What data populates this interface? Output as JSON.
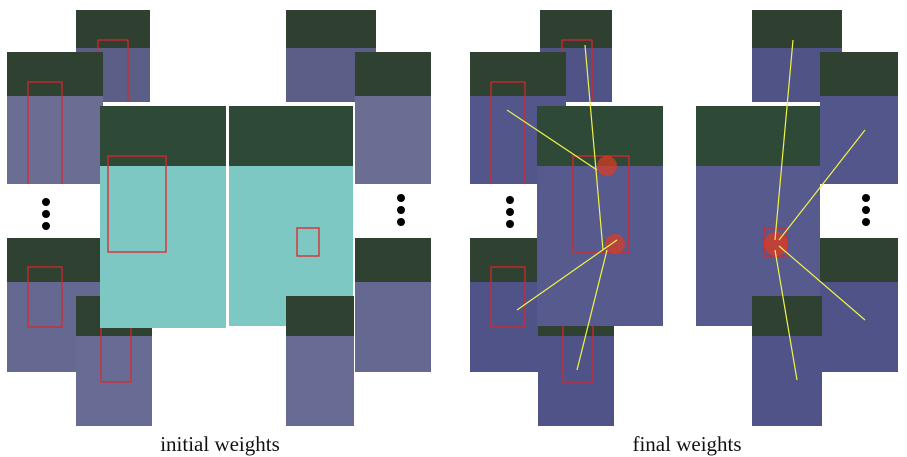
{
  "figure": {
    "captions": {
      "left": "initial weights",
      "right": "final weights"
    },
    "colors": {
      "box": "#e0232a",
      "line": "#f2f24a",
      "heat_low": "#3a3f9a",
      "heat_mid": "#6fd6c8",
      "heat_high": "#e13a1f"
    }
  }
}
